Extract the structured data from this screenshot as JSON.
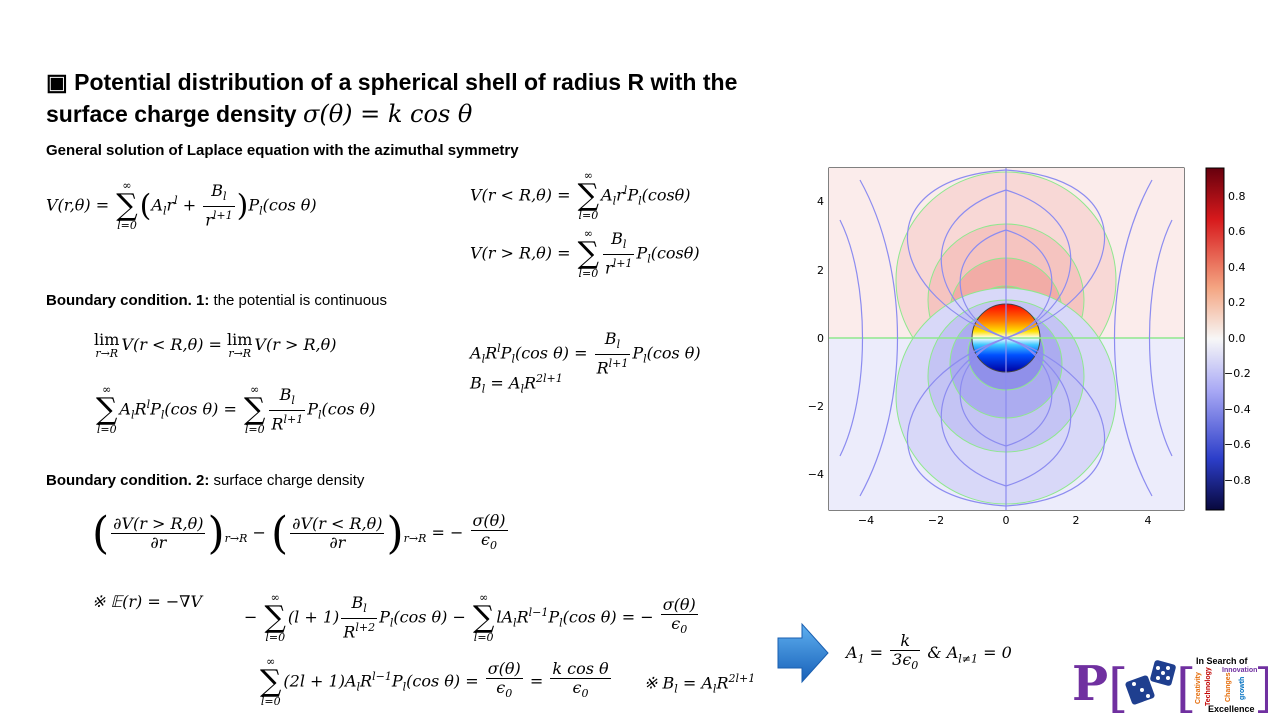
{
  "title": {
    "marker": "▣",
    "line1": "Potential distribution of a spherical shell of radius R with the",
    "line2_text": "surface charge density ",
    "line2_math": "σ(θ) = k cos θ"
  },
  "section1": {
    "heading": "General solution of Laplace equation with the azimuthal symmetry"
  },
  "section2": {
    "heading_bold": "Boundary condition. 1:",
    "heading_text": "  the potential is continuous"
  },
  "section3": {
    "heading_bold": "Boundary condition. 2:",
    "heading_text": " surface charge density"
  },
  "note_field": "※ 𝔼(r) = −∇V",
  "note_B": "※ B",
  "result": "A",
  "plot": {
    "x_ticks": [
      "−4",
      "−2",
      "0",
      "2",
      "4"
    ],
    "y_ticks": [
      "4",
      "2",
      "0",
      "−2",
      "−4"
    ],
    "colorbar_ticks": [
      "0.8",
      "0.6",
      "0.4",
      "0.2",
      "0.0",
      "−0.2",
      "−0.4",
      "−0.6",
      "−0.8"
    ],
    "colors": {
      "positive": "#d7191c",
      "negative": "#2c3ec9",
      "stream": "#8c8cf0",
      "contour": "#7fe07f"
    }
  },
  "logo": {
    "letter": "P",
    "lines": [
      "In Search of",
      "Innovation",
      "Excellence"
    ],
    "words": [
      "Creativity",
      "Technology",
      "Changes",
      "growth"
    ]
  }
}
